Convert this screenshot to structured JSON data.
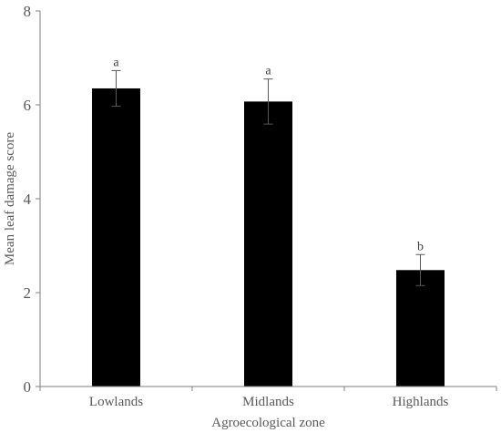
{
  "chart_data": {
    "type": "bar",
    "categories": [
      "Lowlands",
      "Midlands",
      "Highlands"
    ],
    "values": [
      6.35,
      6.07,
      2.48
    ],
    "errors": [
      0.38,
      0.48,
      0.33
    ],
    "significance_letters": [
      "a",
      "a",
      "b"
    ],
    "xlabel": "Agroecological zone",
    "ylabel": "Mean leaf damage score",
    "ylim": [
      0,
      8
    ],
    "yticks": [
      0,
      2,
      4,
      6,
      8
    ],
    "grid": false,
    "bar_color": "#000000",
    "axis_color": "#7f7f7f"
  }
}
